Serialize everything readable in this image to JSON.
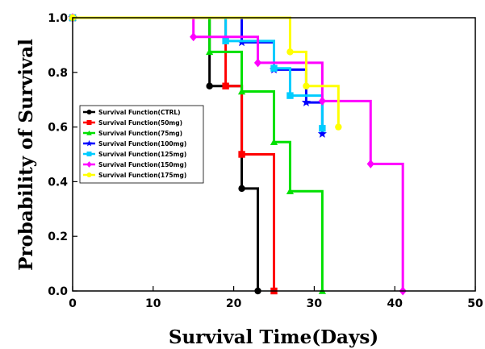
{
  "chart_data": {
    "type": "line",
    "step": true,
    "xlabel": "Survival Time(Days)",
    "ylabel": "Probability of Survival",
    "xlim": [
      0,
      50
    ],
    "ylim": [
      0,
      1.0
    ],
    "x_ticks": [
      0,
      10,
      20,
      30,
      40,
      50
    ],
    "x_tick_labels": [
      "0",
      "10",
      "20",
      "30",
      "40",
      "50"
    ],
    "y_ticks": [
      0,
      0.2,
      0.4,
      0.6,
      0.8,
      1.0
    ],
    "y_tick_labels": [
      "0.0",
      "0.2",
      "0.4",
      "0.6",
      "0.8",
      "1.0"
    ],
    "grid": false,
    "legend_position": "center-left",
    "series": [
      {
        "name": "Survival Function(CTRL)",
        "color": "#000000",
        "marker": "circle",
        "x": [
          0,
          17,
          21,
          23
        ],
        "y": [
          1.0,
          0.75,
          0.375,
          0.0
        ]
      },
      {
        "name": "Survival Function(50mg)",
        "color": "#ff0000",
        "marker": "square",
        "x": [
          0,
          19,
          21,
          25
        ],
        "y": [
          1.0,
          0.75,
          0.5,
          0.0
        ]
      },
      {
        "name": "Survival Function(75mg)",
        "color": "#00e000",
        "marker": "triangle",
        "x": [
          0,
          17,
          21,
          25,
          27,
          31
        ],
        "y": [
          1.0,
          0.875,
          0.73,
          0.545,
          0.365,
          0.0
        ]
      },
      {
        "name": "Survival Function(100mg)",
        "color": "#0000ff",
        "marker": "star",
        "x": [
          0,
          21,
          25,
          29,
          31
        ],
        "y": [
          1.0,
          0.91,
          0.81,
          0.69,
          0.575
        ]
      },
      {
        "name": "Survival Function(125mg)",
        "color": "#00ccff",
        "marker": "square",
        "x": [
          0,
          19,
          25,
          27,
          31
        ],
        "y": [
          1.0,
          0.915,
          0.815,
          0.715,
          0.595
        ]
      },
      {
        "name": "Survival Function(150mg)",
        "color": "#ff00ff",
        "marker": "diamond",
        "x": [
          0,
          15,
          23,
          31,
          37,
          41
        ],
        "y": [
          1.0,
          0.93,
          0.835,
          0.695,
          0.465,
          0.0
        ]
      },
      {
        "name": "Survival Function(175mg)",
        "color": "#ffff00",
        "marker": "circle",
        "x": [
          0,
          27,
          29,
          33
        ],
        "y": [
          1.0,
          0.875,
          0.75,
          0.6
        ]
      }
    ]
  },
  "legend_labels": [
    "Survival Function(CTRL)",
    "Survival Function(50mg)",
    "Survival Function(75mg)",
    "Survival Function(100mg)",
    "Survival Function(125mg)",
    "Survival Function(150mg)",
    "Survival Function(175mg)"
  ]
}
